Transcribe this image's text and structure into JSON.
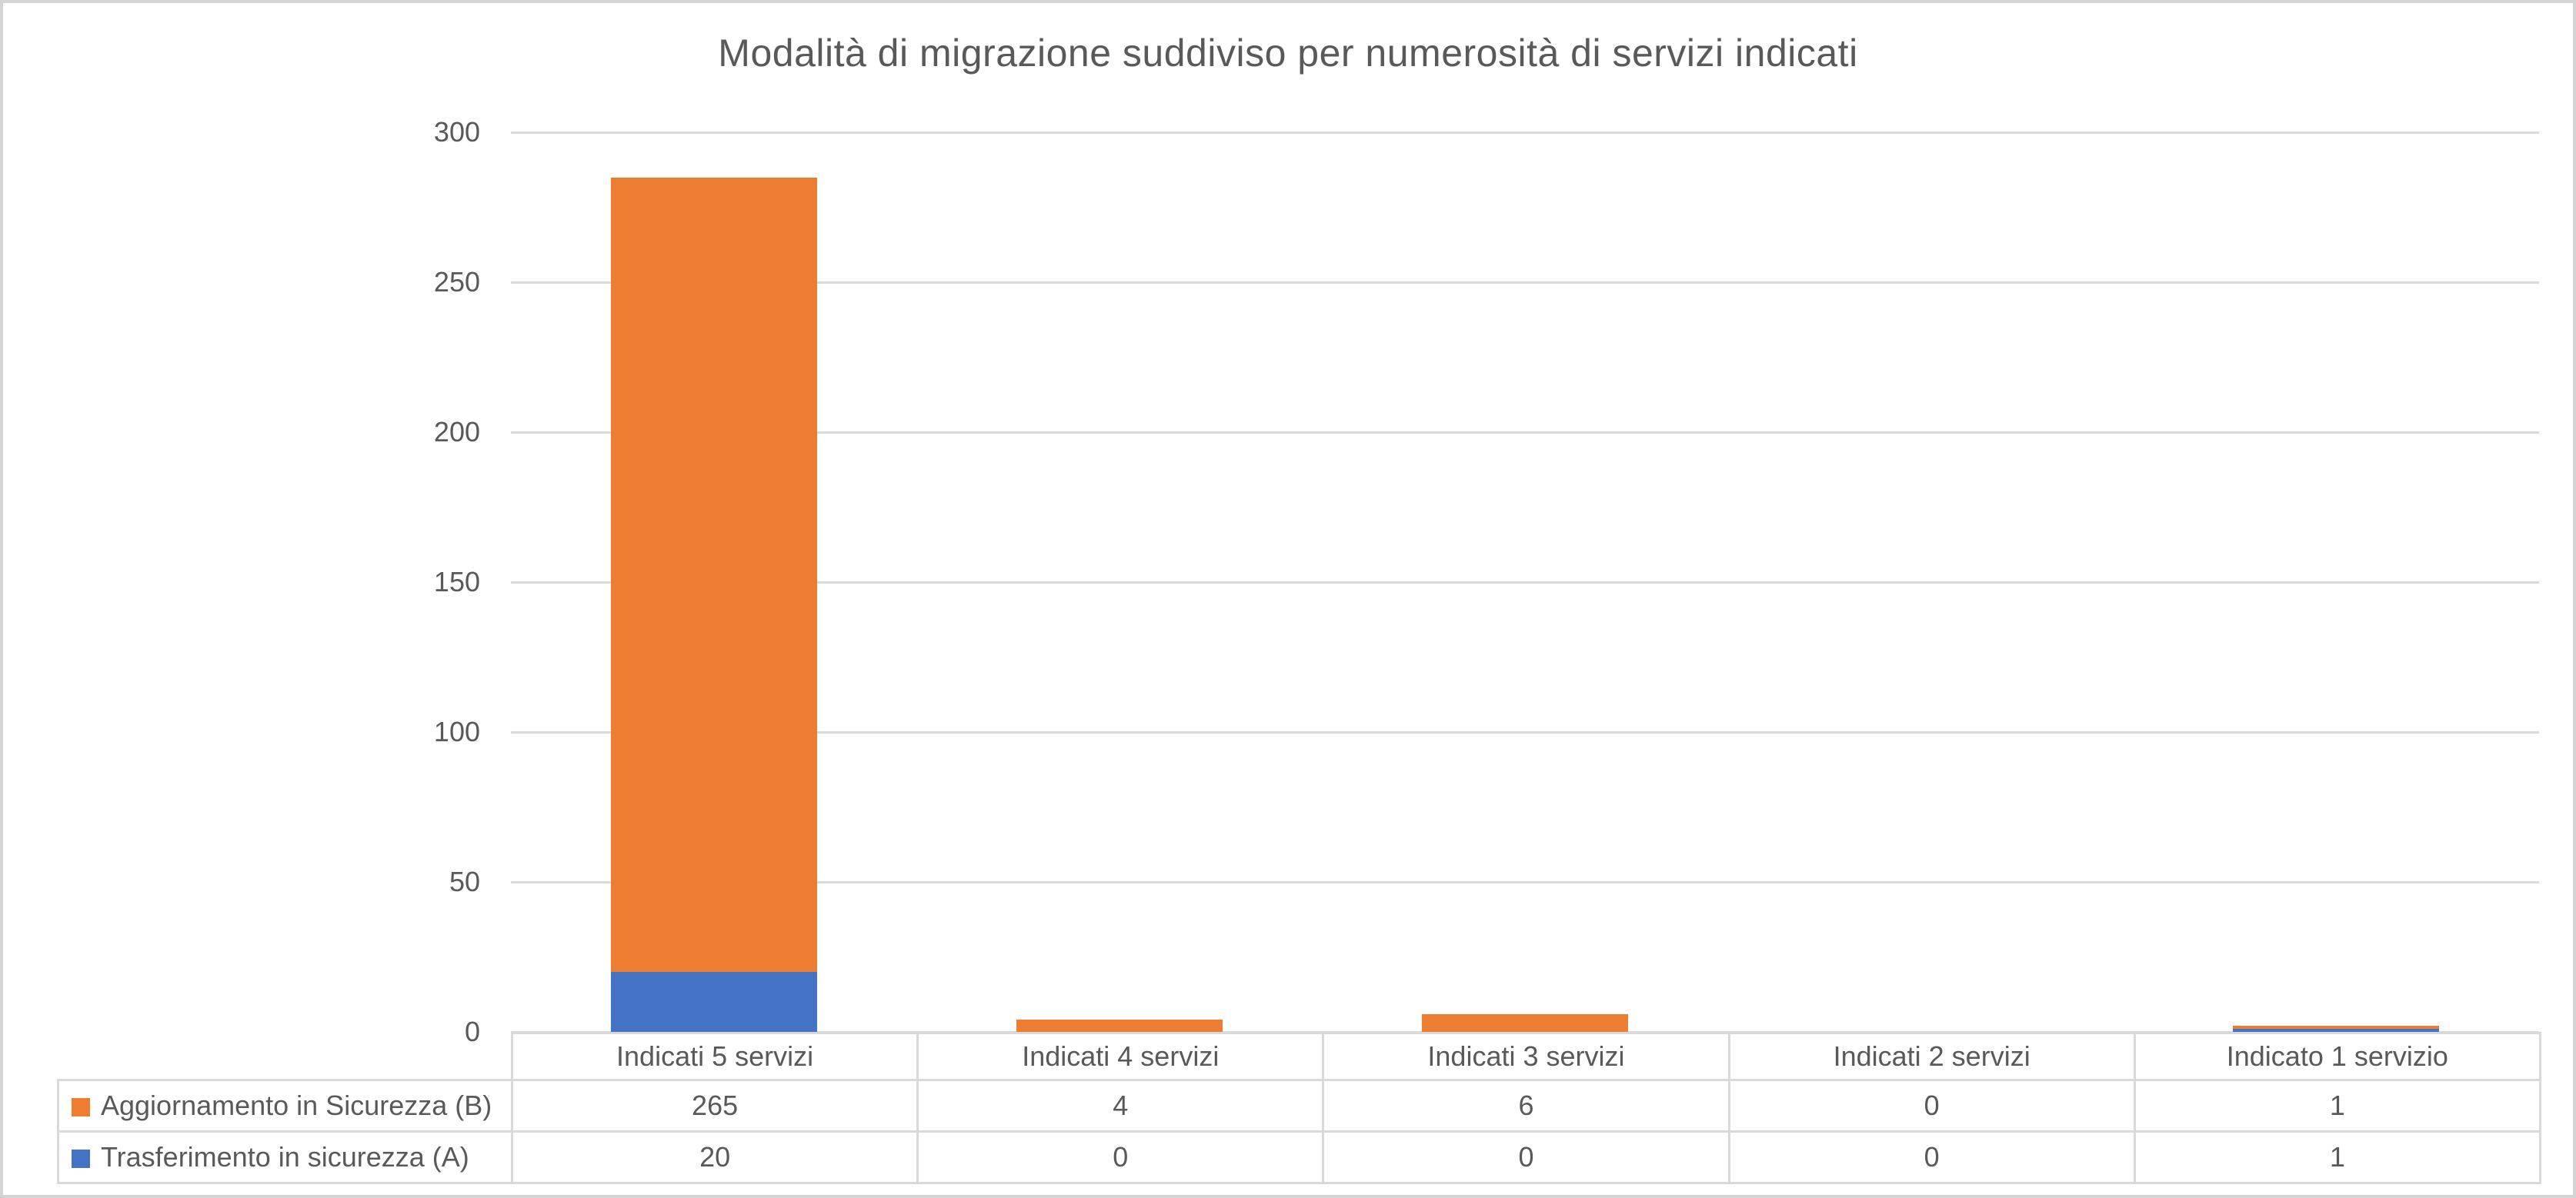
{
  "chart_data": {
    "type": "bar",
    "stacked": true,
    "title": "Modalità di migrazione suddiviso per numerosità di servizi indicati",
    "categories": [
      "Indicati 5 servizi",
      "Indicati 4 servizi",
      "Indicati 3 servizi",
      "Indicati 2 servizi",
      "Indicato 1 servizio"
    ],
    "series": [
      {
        "name": "Aggiornamento in Sicurezza (B)",
        "color": "#ED7D31",
        "values": [
          265,
          4,
          6,
          0,
          1
        ]
      },
      {
        "name": "Trasferimento in sicurezza (A)",
        "color": "#4472C4",
        "values": [
          20,
          0,
          0,
          0,
          1
        ]
      }
    ],
    "stack_order_bottom_to_top": [
      "Trasferimento in sicurezza (A)",
      "Aggiornamento in Sicurezza (B)"
    ],
    "xlabel": "",
    "ylabel": "",
    "ylim": [
      0,
      300
    ],
    "yticks": [
      0,
      50,
      100,
      150,
      200,
      250,
      300
    ],
    "grid": true,
    "legend_position": "table-left",
    "colors": {
      "gridline": "#D9D9D9",
      "table_border": "#D9D9D9",
      "text": "#595959",
      "background": "#FFFFFF",
      "frame_border": "#D4D4D4"
    }
  }
}
